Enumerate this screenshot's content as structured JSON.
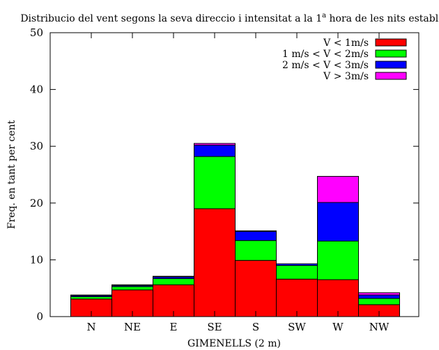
{
  "chart_data": {
    "type": "bar",
    "stacked": true,
    "title": {
      "main": "Distribucio del vent segons la seva direccio i intensitat a la 1",
      "superscript": "a",
      "rest": " hora de les nits estables"
    },
    "xlabel": "GIMENELLS (2 m)",
    "ylabel": "Freq. en tant per cent",
    "ylim": [
      0,
      50
    ],
    "yticks": [
      0,
      10,
      20,
      30,
      40,
      50
    ],
    "grid": false,
    "legend_position": "top-right",
    "categories": [
      "N",
      "NE",
      "E",
      "SE",
      "S",
      "SW",
      "W",
      "NW"
    ],
    "series": [
      {
        "name": "V < 1m/s",
        "color": "#ff0000",
        "values": [
          3.1,
          4.7,
          5.6,
          19.0,
          9.9,
          6.6,
          6.5,
          2.1
        ]
      },
      {
        "name": "1 m/s < V < 2m/s",
        "color": "#00ff00",
        "values": [
          0.4,
          0.6,
          1.1,
          9.2,
          3.5,
          2.4,
          6.8,
          1.1
        ]
      },
      {
        "name": "2 m/s < V < 3m/s",
        "color": "#0000ff",
        "values": [
          0.2,
          0.2,
          0.3,
          2.0,
          1.6,
          0.3,
          6.8,
          0.6
        ]
      },
      {
        "name": "V > 3m/s",
        "color": "#ff00ff",
        "values": [
          0.1,
          0.1,
          0.1,
          0.3,
          0.1,
          0.0,
          4.6,
          0.4
        ]
      }
    ]
  }
}
